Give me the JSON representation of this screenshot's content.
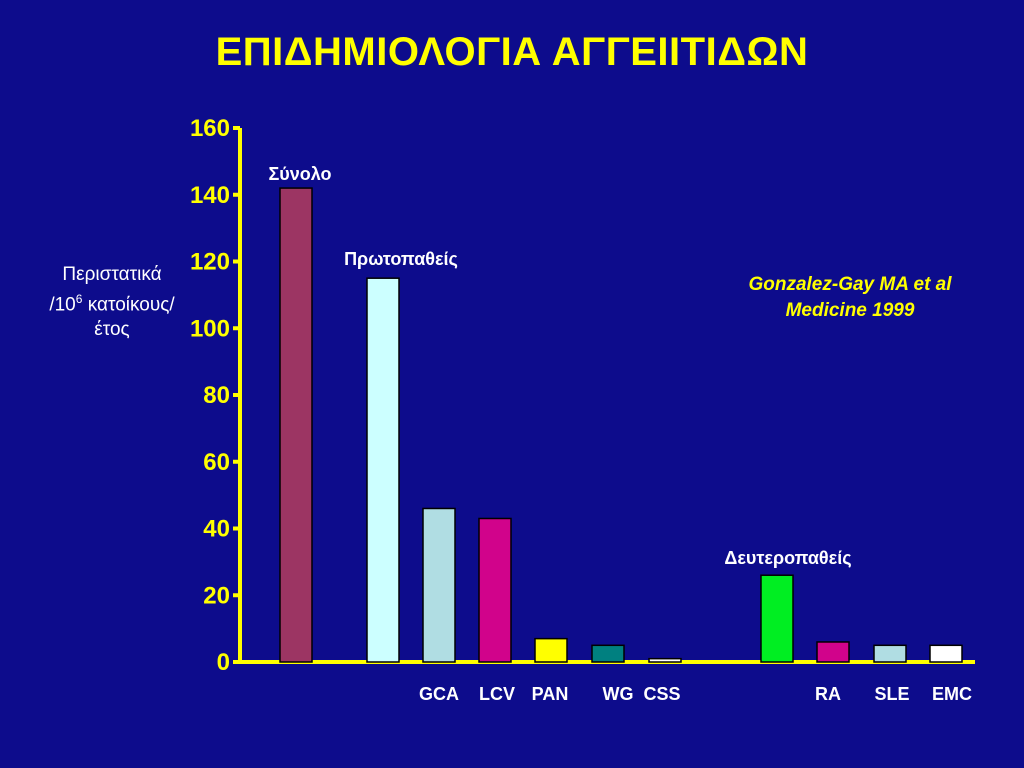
{
  "chart_data": {
    "type": "bar",
    "title": "ΕΠΙΔΗΜΙΟΛΟΓΙΑ ΑΓΓΕΙΙΤΙΔΩΝ",
    "ylabel_lines": [
      "Περιστατικά",
      "/10",
      "6",
      " κατοίκους/",
      "έτος"
    ],
    "citation_lines": [
      "Gonzalez-Gay MA et al",
      "Medicine 1999"
    ],
    "ylim": [
      0,
      160
    ],
    "yticks": [
      0,
      20,
      40,
      60,
      80,
      100,
      120,
      140,
      160
    ],
    "group_labels": [
      "Σύνολο",
      "Πρωτοπαθείς",
      "Δευτεροπαθείς"
    ],
    "bars": [
      {
        "label": "",
        "value": 142,
        "color": "#9c3563"
      },
      {
        "label": "",
        "value": 115,
        "color": "#ccffff"
      },
      {
        "label": "GCA",
        "value": 46,
        "color": "#b0dde3"
      },
      {
        "label": "LCV",
        "value": 43,
        "color": "#d1038b"
      },
      {
        "label": "PAN",
        "value": 7,
        "color": "#ffff00"
      },
      {
        "label": "WG",
        "value": 5,
        "color": "#008080"
      },
      {
        "label": "CSS",
        "value": 1,
        "color": "#ffffff"
      },
      {
        "label": "RA",
        "value": 26,
        "color": "#00ee22"
      },
      {
        "label": "SLE",
        "value": 6,
        "color": "#d1038b"
      },
      {
        "label": "EMC",
        "value": 5,
        "color": "#b0dde3"
      },
      {
        "label": "",
        "value": 5,
        "color": "#ffffff"
      }
    ]
  }
}
